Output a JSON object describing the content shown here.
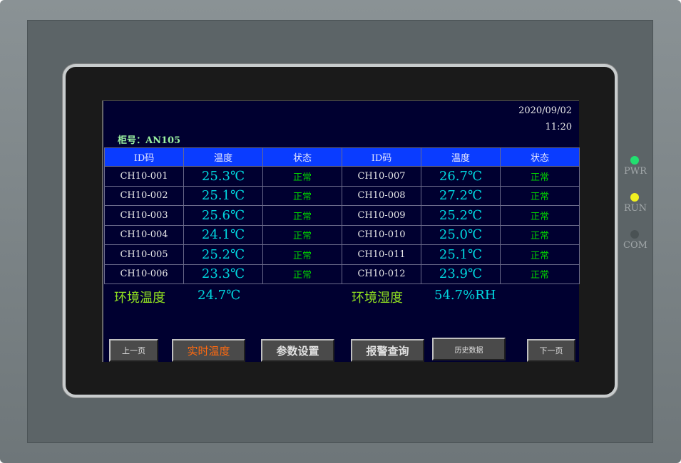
{
  "header": {
    "date": "2020/09/02",
    "time": "11:20",
    "cabinet_label": "柜号：AN105"
  },
  "table": {
    "headers": [
      "ID码",
      "温度",
      "状态",
      "ID码",
      "温度",
      "状态"
    ],
    "rows": [
      [
        "CH10-001",
        "25.3℃",
        "正常",
        "CH10-007",
        "26.7℃",
        "正常"
      ],
      [
        "CH10-002",
        "25.1℃",
        "正常",
        "CH10-008",
        "27.2℃",
        "正常"
      ],
      [
        "CH10-003",
        "25.6℃",
        "正常",
        "CH10-009",
        "25.2℃",
        "正常"
      ],
      [
        "CH10-004",
        "24.1℃",
        "正常",
        "CH10-010",
        "25.0℃",
        "正常"
      ],
      [
        "CH10-005",
        "25.2℃",
        "正常",
        "CH10-011",
        "25.1℃",
        "正常"
      ],
      [
        "CH10-006",
        "23.3℃",
        "正常",
        "CH10-012",
        "23.9℃",
        "正常"
      ]
    ]
  },
  "environment": {
    "temp_label": "环境温度",
    "temp_value": "24.7℃",
    "humidity_label": "环境湿度",
    "humidity_value": "54.7%RH"
  },
  "buttons": {
    "prev": "上一页",
    "realtime": "实时温度",
    "params": "参数设置",
    "alarm": "报警查询",
    "history": "历史数据",
    "next": "下一页"
  },
  "indicators": [
    {
      "label": "PWR",
      "color": "#22e070"
    },
    {
      "label": "RUN",
      "color": "#f0f020"
    },
    {
      "label": "COM",
      "color": "#4a5254"
    }
  ]
}
